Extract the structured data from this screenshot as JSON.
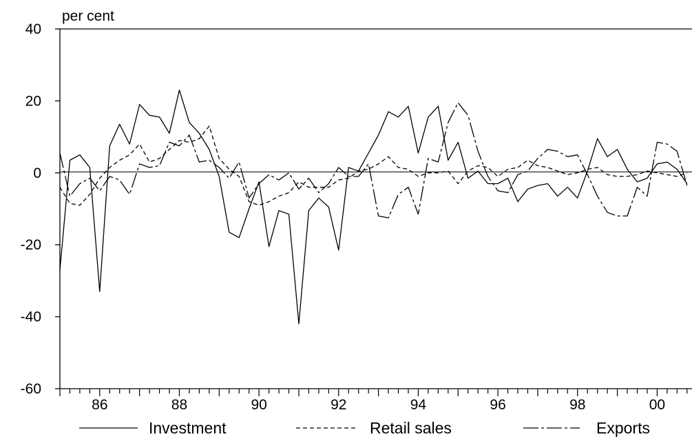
{
  "chart_data": {
    "type": "line",
    "title": "",
    "ylabel": "per cent",
    "xlabel": "",
    "ylim": [
      -60,
      40
    ],
    "xlim": [
      1985.0,
      2000.875
    ],
    "yticks": [
      40,
      20,
      0,
      -20,
      -40,
      -60
    ],
    "ytick_labels": [
      "40",
      "20",
      "0",
      "-20",
      "-40",
      "-60"
    ],
    "xtick_labels": [
      "86",
      "88",
      "90",
      "92",
      "94",
      "96",
      "98",
      "00"
    ],
    "xtick_values": [
      1986,
      1988,
      1990,
      1992,
      1994,
      1996,
      1998,
      2000
    ],
    "zero_line": true,
    "legend_position": "bottom",
    "x_start": 1985.0,
    "x_step": 0.25,
    "series": [
      {
        "name": "Investment",
        "style": "solid",
        "values": [
          -27,
          3.5,
          5,
          1.5,
          -33,
          7.5,
          13.5,
          8,
          19,
          16,
          15.5,
          11,
          23,
          14,
          11,
          6.5,
          -1,
          -16.5,
          -18,
          -10,
          -2.5,
          -20.5,
          -10.5,
          -11.5,
          -42,
          -10.5,
          -7,
          -9.5,
          -21.5,
          1.5,
          0.5,
          5.5,
          10.5,
          17,
          15.5,
          18.5,
          5.5,
          15.5,
          18.5,
          3.5,
          8.5,
          -1.5,
          0.5,
          -3,
          -3,
          -1.5,
          -8,
          -4.5,
          -3.5,
          -3,
          -6.5,
          -4,
          -7,
          0.5,
          9.5,
          4.5,
          6.5,
          1,
          -2.5,
          -1.5,
          2.5,
          3,
          1,
          -3
        ]
      },
      {
        "name": "Retail sales",
        "style": "dashed",
        "values": [
          -4,
          -8.5,
          -9,
          -6,
          -1.5,
          1.5,
          3.5,
          5,
          8,
          3,
          4,
          6.5,
          9,
          8.5,
          9.5,
          13,
          4,
          1,
          -1,
          -8,
          -9,
          -8,
          -6.5,
          -5.5,
          -2.5,
          -4,
          -4,
          -4,
          -2,
          -1.5,
          0.5,
          1,
          2.5,
          4.5,
          1.5,
          1,
          -1,
          0,
          0,
          0.5,
          -3,
          0.5,
          2,
          1.5,
          -1,
          1,
          1.5,
          3.5,
          2,
          1.5,
          0.5,
          -0.5,
          0,
          1,
          1.5,
          -0.5,
          -1,
          -1,
          -0.5,
          0.5,
          0,
          -0.5,
          -1,
          0
        ]
      },
      {
        "name": "Exports",
        "style": "dashdot",
        "values": [
          5.5,
          -6.5,
          -3,
          -1.5,
          -5,
          -1,
          -2,
          -6,
          2.5,
          1.5,
          2,
          8.5,
          7.5,
          10.5,
          3,
          3.5,
          1.5,
          -1.5,
          3,
          -7,
          -3,
          -0.5,
          -2,
          0,
          -4.5,
          -1.5,
          -5.5,
          -3,
          1.5,
          -1,
          -1,
          2.5,
          -12,
          -12.5,
          -6,
          -4,
          -11.5,
          4,
          3,
          14,
          19.5,
          16,
          6,
          -1,
          -5,
          -5.5,
          -0.5,
          0.5,
          4,
          6.5,
          6,
          4.5,
          5,
          -0.5,
          -6.5,
          -11,
          -12,
          -12,
          -4,
          -6.5,
          8.5,
          8,
          6,
          -3.5
        ]
      }
    ]
  }
}
